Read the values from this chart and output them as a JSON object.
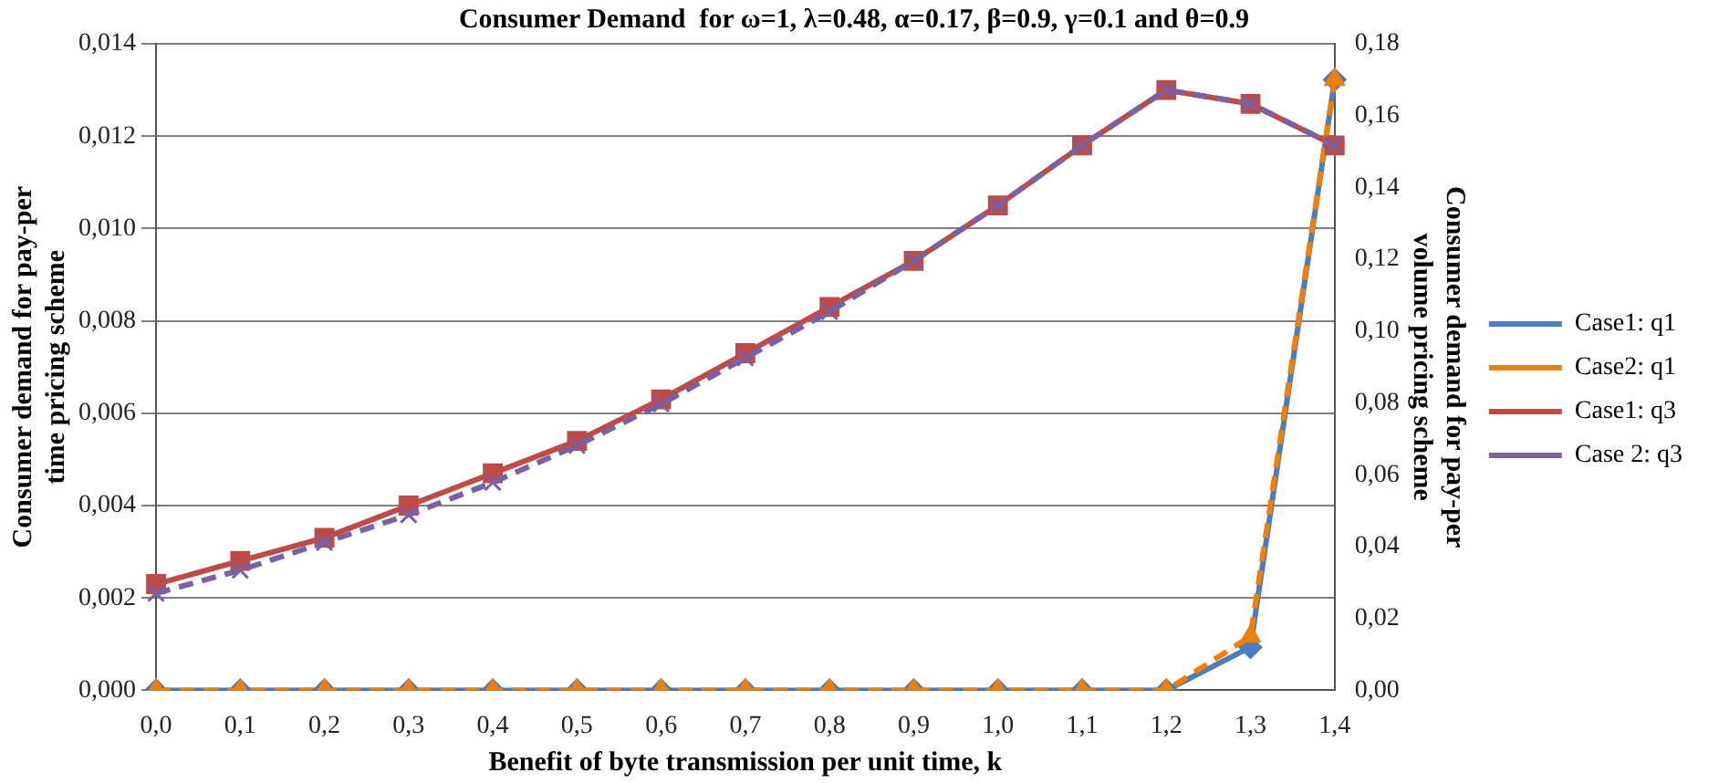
{
  "chart_data": {
    "type": "line",
    "title": "Consumer Demand  for ω=1, λ=0.48, α=0.17, β=0.9, γ=0.1 and θ=0.9",
    "xlabel": "Benefit of byte transmission per unit time, k",
    "ylabel": "Consumer demand for pay-per time pricing scheme",
    "y2label": "Consumer demand for pay-per volume pricing scheme",
    "categories": [
      "0,0",
      "0,1",
      "0,2",
      "0,3",
      "0,4",
      "0,5",
      "0,6",
      "0,7",
      "0,8",
      "0,9",
      "1,0",
      "1,1",
      "1,2",
      "1,3",
      "1,4"
    ],
    "series": [
      {
        "name": "Case1: q1",
        "color": "#4a7ebb",
        "axis": "y2",
        "marker": "diamond",
        "line_style": "solid",
        "values": [
          0,
          0,
          0,
          0,
          0,
          0,
          0,
          0,
          0,
          0,
          0,
          0,
          0,
          0.012,
          0.17
        ]
      },
      {
        "name": "Case2: q1",
        "color": "#f07f09",
        "axis": "y2",
        "marker": "triangle",
        "line_style": "dashed",
        "values": [
          0,
          0,
          0,
          0,
          0,
          0,
          0,
          0,
          0,
          0,
          0,
          0,
          0,
          0.015,
          0.17
        ]
      },
      {
        "name": "Case1: q3",
        "color": "#be4b48",
        "marker": "square",
        "line_style": "solid",
        "values": [
          0.0023,
          0.0028,
          0.0033,
          0.004,
          0.0047,
          0.0054,
          0.0063,
          0.0073,
          0.0083,
          0.0093,
          0.0105,
          0.0118,
          0.013,
          0.0127,
          0.0118
        ]
      },
      {
        "name": "Case 2: q3",
        "color": "#7d60a0",
        "marker": "cross",
        "line_style": "dashed",
        "values": [
          0.0021,
          0.0026,
          0.0032,
          0.0038,
          0.0045,
          0.0053,
          0.0062,
          0.0072,
          0.0082,
          0.0093,
          0.0105,
          0.0118,
          0.013,
          0.0127,
          0.0118
        ]
      }
    ],
    "ylim": [
      0,
      0.014
    ],
    "yticks": [
      {
        "value": 0,
        "label": "0,000"
      },
      {
        "value": 0.002,
        "label": "0,002"
      },
      {
        "value": 0.004,
        "label": "0,004"
      },
      {
        "value": 0.006,
        "label": "0,006"
      },
      {
        "value": 0.008,
        "label": "0,008"
      },
      {
        "value": 0.01,
        "label": "0,010"
      },
      {
        "value": 0.012,
        "label": "0,012"
      },
      {
        "value": 0.014,
        "label": "0,014"
      }
    ],
    "y2lim": [
      0,
      0.18
    ],
    "y2ticks": [
      {
        "value": 0,
        "label": "0,00"
      },
      {
        "value": 0.02,
        "label": "0,02"
      },
      {
        "value": 0.04,
        "label": "0,04"
      },
      {
        "value": 0.06,
        "label": "0,06"
      },
      {
        "value": 0.08,
        "label": "0,08"
      },
      {
        "value": 0.1,
        "label": "0,10"
      },
      {
        "value": 0.12,
        "label": "0,12"
      },
      {
        "value": 0.14,
        "label": "0,14"
      },
      {
        "value": 0.16,
        "label": "0,16"
      },
      {
        "value": 0.18,
        "label": "0,18"
      }
    ],
    "grid": "y",
    "legend": "right"
  }
}
